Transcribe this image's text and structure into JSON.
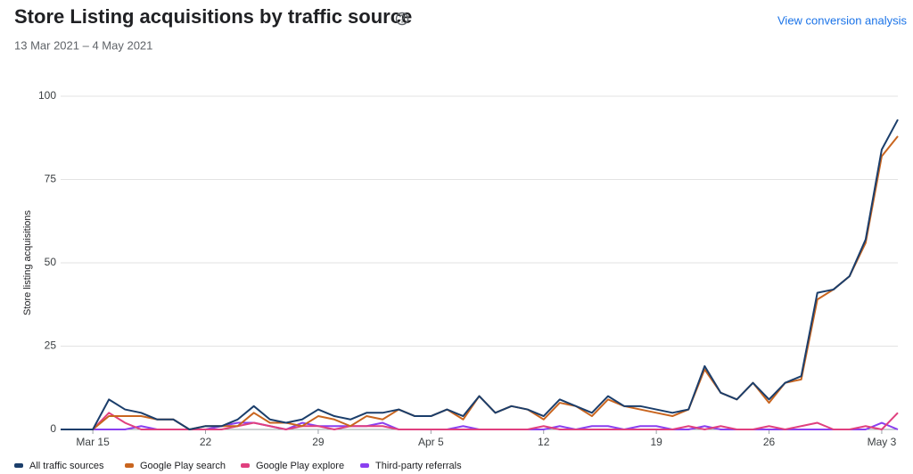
{
  "chart_data": {
    "type": "line",
    "title": "Store Listing acquisitions by traffic source",
    "subtitle": "13 Mar 2021 – 4 May 2021",
    "link": "View conversion analysis",
    "ylabel": "Store listing acquisitions",
    "x": [
      "2021-03-13",
      "2021-03-14",
      "2021-03-15",
      "2021-03-16",
      "2021-03-17",
      "2021-03-18",
      "2021-03-19",
      "2021-03-20",
      "2021-03-21",
      "2021-03-22",
      "2021-03-23",
      "2021-03-24",
      "2021-03-25",
      "2021-03-26",
      "2021-03-27",
      "2021-03-28",
      "2021-03-29",
      "2021-03-30",
      "2021-03-31",
      "2021-04-01",
      "2021-04-02",
      "2021-04-03",
      "2021-04-04",
      "2021-04-05",
      "2021-04-06",
      "2021-04-07",
      "2021-04-08",
      "2021-04-09",
      "2021-04-10",
      "2021-04-11",
      "2021-04-12",
      "2021-04-13",
      "2021-04-14",
      "2021-04-15",
      "2021-04-16",
      "2021-04-17",
      "2021-04-18",
      "2021-04-19",
      "2021-04-20",
      "2021-04-21",
      "2021-04-22",
      "2021-04-23",
      "2021-04-24",
      "2021-04-25",
      "2021-04-26",
      "2021-04-27",
      "2021-04-28",
      "2021-04-29",
      "2021-04-30",
      "2021-05-01",
      "2021-05-02",
      "2021-05-03",
      "2021-05-04"
    ],
    "xlim": [
      "2021-03-13",
      "2021-05-04"
    ],
    "xticks": [
      {
        "value": "2021-03-15",
        "label": "Mar 15"
      },
      {
        "value": "2021-03-22",
        "label": "22"
      },
      {
        "value": "2021-03-29",
        "label": "29"
      },
      {
        "value": "2021-04-05",
        "label": "Apr 5"
      },
      {
        "value": "2021-04-12",
        "label": "12"
      },
      {
        "value": "2021-04-19",
        "label": "19"
      },
      {
        "value": "2021-04-26",
        "label": "26"
      },
      {
        "value": "2021-05-03",
        "label": "May 3"
      }
    ],
    "ylim": [
      0,
      100
    ],
    "yticks": [
      0,
      25,
      50,
      75,
      100
    ],
    "grid": true,
    "legend": "bottom",
    "series": [
      {
        "name": "All traffic sources",
        "color": "#1b3e6b",
        "values": [
          0,
          0,
          0,
          9,
          6,
          5,
          3,
          3,
          0,
          1,
          1,
          3,
          7,
          3,
          2,
          3,
          6,
          4,
          3,
          5,
          5,
          6,
          4,
          4,
          6,
          4,
          10,
          5,
          7,
          6,
          4,
          9,
          7,
          5,
          10,
          7,
          7,
          6,
          5,
          6,
          19,
          11,
          9,
          14,
          9,
          14,
          16,
          41,
          42,
          46,
          57,
          84,
          93
        ]
      },
      {
        "name": "Google Play search",
        "color": "#c9651f",
        "values": [
          0,
          0,
          0,
          4,
          4,
          4,
          3,
          3,
          0,
          1,
          1,
          1,
          5,
          2,
          2,
          1,
          4,
          3,
          1,
          4,
          3,
          6,
          4,
          4,
          6,
          3,
          10,
          5,
          7,
          6,
          3,
          8,
          7,
          4,
          9,
          7,
          6,
          5,
          4,
          6,
          18,
          11,
          9,
          14,
          8,
          14,
          15,
          39,
          42,
          46,
          56,
          82,
          88
        ]
      },
      {
        "name": "Google Play explore",
        "color": "#e0407f",
        "values": [
          0,
          0,
          0,
          5,
          2,
          0,
          0,
          0,
          0,
          0,
          0,
          1,
          2,
          1,
          0,
          1,
          1,
          0,
          1,
          1,
          1,
          0,
          0,
          0,
          0,
          0,
          0,
          0,
          0,
          0,
          1,
          0,
          0,
          0,
          0,
          0,
          0,
          0,
          0,
          1,
          0,
          1,
          0,
          0,
          1,
          0,
          1,
          2,
          0,
          0,
          1,
          0,
          5
        ]
      },
      {
        "name": "Third-party referrals",
        "color": "#8a3ff0",
        "values": [
          0,
          0,
          0,
          0,
          0,
          1,
          0,
          0,
          0,
          0,
          1,
          2,
          2,
          1,
          0,
          2,
          1,
          1,
          1,
          1,
          2,
          0,
          0,
          0,
          0,
          1,
          0,
          0,
          0,
          0,
          0,
          1,
          0,
          1,
          1,
          0,
          1,
          1,
          0,
          0,
          1,
          0,
          0,
          0,
          0,
          0,
          0,
          0,
          0,
          0,
          0,
          2,
          0
        ]
      }
    ]
  }
}
